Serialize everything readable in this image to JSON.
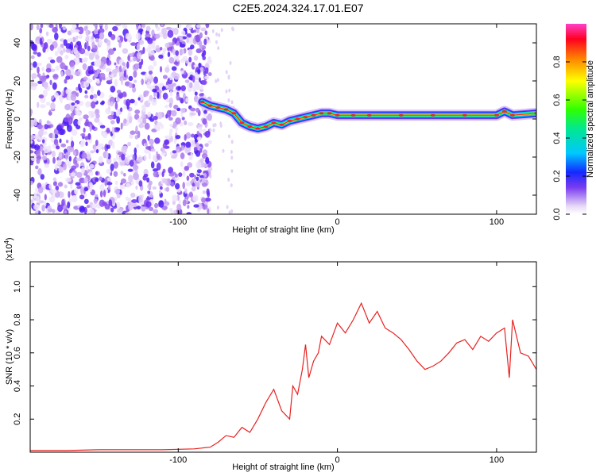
{
  "title": "C2E5.2024.324.17.01.E07",
  "chart_data": [
    {
      "type": "heatmap",
      "xlabel": "Height of straight line (km)",
      "ylabel": "Frequency (Hz)",
      "xlim": [
        -193,
        125
      ],
      "ylim": [
        -50,
        50
      ],
      "xticks": [
        -100,
        0,
        100
      ],
      "yticks": [
        -40,
        -20,
        0,
        20,
        40
      ],
      "colorbar": {
        "label": "Normalized spectral amplitude",
        "range": [
          0,
          1
        ],
        "ticks": [
          "0.0",
          "0.2",
          "0.4",
          "0.6",
          "0.8"
        ]
      },
      "ridge": {
        "x": [
          -85,
          -80,
          -75,
          -70,
          -65,
          -60,
          -55,
          -50,
          -45,
          -40,
          -35,
          -30,
          -25,
          -20,
          -15,
          -10,
          -5,
          0,
          10,
          20,
          40,
          60,
          80,
          100,
          105,
          110,
          125
        ],
        "y": [
          9,
          7,
          6,
          5,
          3,
          -2,
          -4,
          -5,
          -4,
          -2,
          -3,
          -1,
          0,
          1,
          2,
          3,
          3,
          2,
          2,
          2,
          2,
          2,
          2,
          2,
          4,
          2,
          3
        ]
      }
    },
    {
      "type": "line",
      "xlabel": "Height of straight line (km)",
      "ylabel": "SNR (10 * v/v)",
      "y_multiplier": "(x10",
      "y_multiplier_exp": "4",
      "xlim": [
        -193,
        125
      ],
      "ylim": [
        0,
        1.15
      ],
      "xticks": [
        -100,
        0,
        100
      ],
      "yticks": [
        "0.2",
        "0.4",
        "0.6",
        "0.8",
        "1.0"
      ],
      "series": [
        {
          "color": "#e8211f",
          "x": [
            -193,
            -170,
            -150,
            -130,
            -110,
            -90,
            -80,
            -75,
            -70,
            -65,
            -60,
            -55,
            -50,
            -45,
            -40,
            -35,
            -30,
            -28,
            -25,
            -22,
            -20,
            -18,
            -15,
            -12,
            -10,
            -5,
            0,
            5,
            10,
            15,
            20,
            25,
            30,
            35,
            40,
            45,
            50,
            55,
            60,
            65,
            70,
            75,
            80,
            85,
            90,
            95,
            100,
            105,
            108,
            110,
            115,
            120,
            125
          ],
          "y": [
            0.01,
            0.01,
            0.015,
            0.015,
            0.015,
            0.02,
            0.03,
            0.06,
            0.1,
            0.09,
            0.15,
            0.12,
            0.2,
            0.3,
            0.38,
            0.25,
            0.2,
            0.4,
            0.35,
            0.5,
            0.65,
            0.45,
            0.55,
            0.6,
            0.7,
            0.65,
            0.78,
            0.72,
            0.8,
            0.9,
            0.78,
            0.85,
            0.75,
            0.72,
            0.68,
            0.62,
            0.55,
            0.5,
            0.52,
            0.55,
            0.6,
            0.66,
            0.68,
            0.62,
            0.7,
            0.67,
            0.72,
            0.75,
            0.45,
            0.8,
            0.6,
            0.58,
            0.5
          ]
        }
      ]
    }
  ]
}
